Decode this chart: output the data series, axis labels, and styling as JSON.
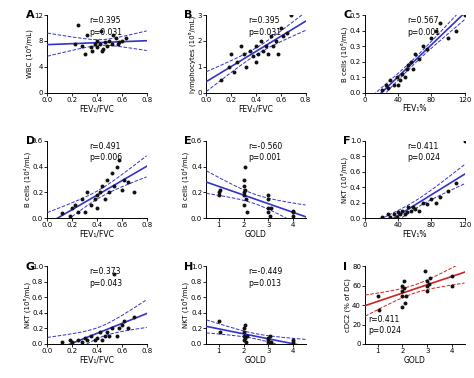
{
  "panels": [
    {
      "label": "A",
      "xlabel": "FEV₁/FVC",
      "ylabel": "WBC (10⁶/mL)",
      "r_text": "r=0.395",
      "p_text": "p=0.031",
      "ann_loc": "top",
      "xdata": [
        0.22,
        0.25,
        0.28,
        0.3,
        0.32,
        0.35,
        0.36,
        0.38,
        0.4,
        0.4,
        0.42,
        0.43,
        0.44,
        0.45,
        0.46,
        0.48,
        0.5,
        0.52,
        0.53,
        0.55,
        0.57,
        0.58,
        0.6,
        0.63
      ],
      "ydata": [
        7.5,
        10.5,
        7.2,
        6.0,
        9.0,
        7.0,
        6.5,
        7.5,
        8.0,
        7.0,
        7.5,
        9.5,
        6.5,
        6.8,
        7.8,
        7.2,
        8.0,
        7.5,
        9.0,
        8.5,
        7.5,
        7.8,
        8.0,
        8.5
      ],
      "xlim": [
        0.0,
        0.8
      ],
      "ylim": [
        0,
        12
      ],
      "yticks": [
        0,
        4,
        8,
        12
      ],
      "xticks": [
        0.0,
        0.2,
        0.4,
        0.6,
        0.8
      ],
      "line_color": "#3333cc",
      "slope_sign": 1
    },
    {
      "label": "B",
      "xlabel": "FEV₁/FVC",
      "ylabel": "lymphocytes (10⁶/mL)",
      "r_text": "r=0.395",
      "p_text": "p=0.031",
      "ann_loc": "top",
      "xdata": [
        0.12,
        0.18,
        0.2,
        0.22,
        0.25,
        0.28,
        0.3,
        0.32,
        0.35,
        0.38,
        0.4,
        0.4,
        0.42,
        0.44,
        0.46,
        0.48,
        0.5,
        0.52,
        0.54,
        0.56,
        0.58,
        0.6,
        0.62,
        0.65,
        0.68
      ],
      "ydata": [
        0.5,
        1.0,
        1.5,
        0.8,
        1.2,
        1.8,
        1.5,
        1.0,
        1.6,
        1.4,
        1.8,
        1.2,
        1.5,
        2.0,
        1.6,
        1.8,
        1.5,
        2.2,
        1.8,
        2.0,
        1.5,
        2.5,
        2.2,
        2.3,
        3.0
      ],
      "xlim": [
        0.0,
        0.8
      ],
      "ylim": [
        0,
        3
      ],
      "yticks": [
        0,
        1,
        2,
        3
      ],
      "xticks": [
        0.0,
        0.2,
        0.4,
        0.6,
        0.8
      ],
      "line_color": "#3333cc",
      "slope_sign": 1
    },
    {
      "label": "C",
      "xlabel": "FEV₁%",
      "ylabel": "B cells (10⁶/mL)",
      "r_text": "r=0.567",
      "p_text": "p=0.001",
      "ann_loc": "top",
      "xdata": [
        20,
        25,
        28,
        30,
        35,
        38,
        40,
        42,
        45,
        48,
        50,
        52,
        55,
        58,
        60,
        65,
        70,
        75,
        80,
        85,
        90,
        100,
        110,
        120
      ],
      "ydata": [
        0.02,
        0.05,
        0.03,
        0.08,
        0.05,
        0.1,
        0.05,
        0.08,
        0.12,
        0.1,
        0.15,
        0.18,
        0.2,
        0.15,
        0.25,
        0.22,
        0.3,
        0.28,
        0.35,
        0.4,
        0.45,
        0.35,
        0.4,
        0.5
      ],
      "xlim": [
        0,
        120
      ],
      "ylim": [
        0,
        0.5
      ],
      "yticks": [
        0.0,
        0.1,
        0.2,
        0.3,
        0.4,
        0.5
      ],
      "xticks": [
        0,
        40,
        80,
        120
      ],
      "line_color": "#3333cc",
      "slope_sign": 1
    },
    {
      "label": "D",
      "xlabel": "FEV₁/FVC",
      "ylabel": "B cells (10⁴/mL)",
      "r_text": "r=0.491",
      "p_text": "p=0.006",
      "ann_loc": "top",
      "xdata": [
        0.12,
        0.18,
        0.2,
        0.22,
        0.25,
        0.28,
        0.3,
        0.32,
        0.35,
        0.38,
        0.4,
        0.4,
        0.42,
        0.44,
        0.46,
        0.48,
        0.5,
        0.52,
        0.54,
        0.56,
        0.58,
        0.6,
        0.62,
        0.65,
        0.7
      ],
      "ydata": [
        0.04,
        0.02,
        0.08,
        0.1,
        0.05,
        0.15,
        0.05,
        0.2,
        0.1,
        0.15,
        0.18,
        0.08,
        0.2,
        0.25,
        0.15,
        0.3,
        0.2,
        0.35,
        0.25,
        0.4,
        0.45,
        0.22,
        0.3,
        0.28,
        0.2
      ],
      "xlim": [
        0.0,
        0.8
      ],
      "ylim": [
        0,
        0.6
      ],
      "yticks": [
        0.0,
        0.2,
        0.4,
        0.6
      ],
      "xticks": [
        0.0,
        0.2,
        0.4,
        0.6,
        0.8
      ],
      "line_color": "#3333cc",
      "slope_sign": 1
    },
    {
      "label": "E",
      "xlabel": "GOLD",
      "ylabel": "B cells (10⁴/mL)",
      "r_text": "r=-0.560",
      "p_text": "p=0.001",
      "ann_loc": "top",
      "xdata": [
        1.0,
        1.0,
        1.05,
        2.0,
        2.0,
        2.0,
        2.0,
        2.0,
        2.05,
        2.05,
        2.1,
        2.15,
        3.0,
        3.0,
        3.0,
        3.0,
        3.05,
        3.1,
        4.0,
        4.0,
        4.0
      ],
      "ydata": [
        0.2,
        0.18,
        0.22,
        0.1,
        0.2,
        0.25,
        0.18,
        0.3,
        0.4,
        0.22,
        0.15,
        0.05,
        0.15,
        0.08,
        0.18,
        0.05,
        0.02,
        0.08,
        0.05,
        0.02,
        0.06
      ],
      "xlim": [
        0.5,
        4.5
      ],
      "ylim": [
        0,
        0.6
      ],
      "yticks": [
        0.0,
        0.2,
        0.4,
        0.6
      ],
      "xticks": [
        1,
        2,
        3,
        4
      ],
      "line_color": "#3333cc",
      "slope_sign": -1
    },
    {
      "label": "F",
      "xlabel": "FEV₁%",
      "ylabel": "NKT (10⁶/mL)",
      "r_text": "r=0.411",
      "p_text": "p=0.024",
      "ann_loc": "top",
      "xdata": [
        20,
        28,
        30,
        35,
        38,
        40,
        42,
        45,
        48,
        50,
        52,
        55,
        58,
        60,
        65,
        70,
        75,
        80,
        85,
        90,
        100,
        110,
        120
      ],
      "ydata": [
        0.02,
        0.05,
        0.02,
        0.05,
        0.02,
        0.08,
        0.05,
        0.1,
        0.05,
        0.08,
        0.15,
        0.1,
        0.15,
        0.12,
        0.1,
        0.2,
        0.18,
        0.25,
        0.2,
        0.28,
        0.35,
        0.45,
        1.0
      ],
      "xlim": [
        0,
        120
      ],
      "ylim": [
        0,
        1.0
      ],
      "yticks": [
        0.0,
        0.2,
        0.4,
        0.6,
        0.8,
        1.0
      ],
      "xticks": [
        0,
        40,
        80,
        120
      ],
      "line_color": "#3333cc",
      "slope_sign": 1
    },
    {
      "label": "G",
      "xlabel": "FEV₁/FVC",
      "ylabel": "NKT (10⁶/mL)",
      "r_text": "r=0.373",
      "p_text": "p=0.043",
      "ann_loc": "top",
      "xdata": [
        0.12,
        0.18,
        0.2,
        0.25,
        0.28,
        0.3,
        0.32,
        0.35,
        0.38,
        0.4,
        0.42,
        0.44,
        0.46,
        0.48,
        0.5,
        0.52,
        0.54,
        0.56,
        0.58,
        0.6,
        0.62,
        0.65,
        0.7
      ],
      "ydata": [
        0.02,
        0.05,
        0.02,
        0.05,
        0.02,
        0.08,
        0.05,
        0.1,
        0.05,
        0.08,
        0.15,
        0.05,
        0.1,
        0.15,
        0.1,
        0.2,
        0.9,
        0.1,
        0.2,
        0.25,
        0.3,
        0.2,
        0.35
      ],
      "xlim": [
        0.0,
        0.8
      ],
      "ylim": [
        0,
        1.0
      ],
      "yticks": [
        0.0,
        0.2,
        0.4,
        0.6,
        0.8,
        1.0
      ],
      "xticks": [
        0.0,
        0.2,
        0.4,
        0.6,
        0.8
      ],
      "line_color": "#3333cc",
      "slope_sign": 1
    },
    {
      "label": "H",
      "xlabel": "GOLD",
      "ylabel": "NKT (10⁶/mL)",
      "r_text": "r=-0.449",
      "p_text": "p=0.013",
      "ann_loc": "top",
      "xdata": [
        1.0,
        1.05,
        2.0,
        2.0,
        2.0,
        2.0,
        2.05,
        2.05,
        2.1,
        2.15,
        3.0,
        3.0,
        3.0,
        3.05,
        3.1,
        4.0,
        4.0
      ],
      "ydata": [
        0.3,
        0.15,
        0.05,
        0.15,
        0.2,
        0.1,
        0.25,
        0.08,
        0.02,
        0.1,
        0.05,
        0.08,
        0.02,
        0.1,
        0.02,
        0.05,
        0.02
      ],
      "xlim": [
        0.5,
        4.5
      ],
      "ylim": [
        0,
        1.0
      ],
      "yticks": [
        0.0,
        0.2,
        0.4,
        0.6,
        0.8,
        1.0
      ],
      "xticks": [
        1,
        2,
        3,
        4
      ],
      "line_color": "#3333cc",
      "slope_sign": -1
    },
    {
      "label": "I",
      "xlabel": "GOLD",
      "ylabel": "cDC2 (% of DC)",
      "r_text": "r=0.411",
      "p_text": "p=0.024",
      "ann_loc": "bottom",
      "xdata": [
        1.0,
        1.05,
        2.0,
        2.0,
        2.0,
        2.0,
        2.05,
        2.05,
        2.1,
        2.15,
        2.9,
        3.0,
        3.0,
        3.0,
        3.05,
        3.1,
        4.0,
        4.0
      ],
      "ydata": [
        50.0,
        35.0,
        38.0,
        50.0,
        55.0,
        60.0,
        65.0,
        58.0,
        42.0,
        50.0,
        75.0,
        55.0,
        60.0,
        65.0,
        62.0,
        68.0,
        60.0,
        70.0
      ],
      "xlim": [
        0.5,
        4.5
      ],
      "ylim": [
        0,
        80
      ],
      "yticks": [
        0,
        20,
        40,
        60,
        80
      ],
      "xticks": [
        1,
        2,
        3,
        4
      ],
      "line_color": "#cc2222",
      "slope_sign": 1
    }
  ],
  "bg_color": "#ffffff",
  "scatter_color": "#111111",
  "scatter_size": 8,
  "line_width": 1.2,
  "font_size": 5.5,
  "label_font_size": 8
}
